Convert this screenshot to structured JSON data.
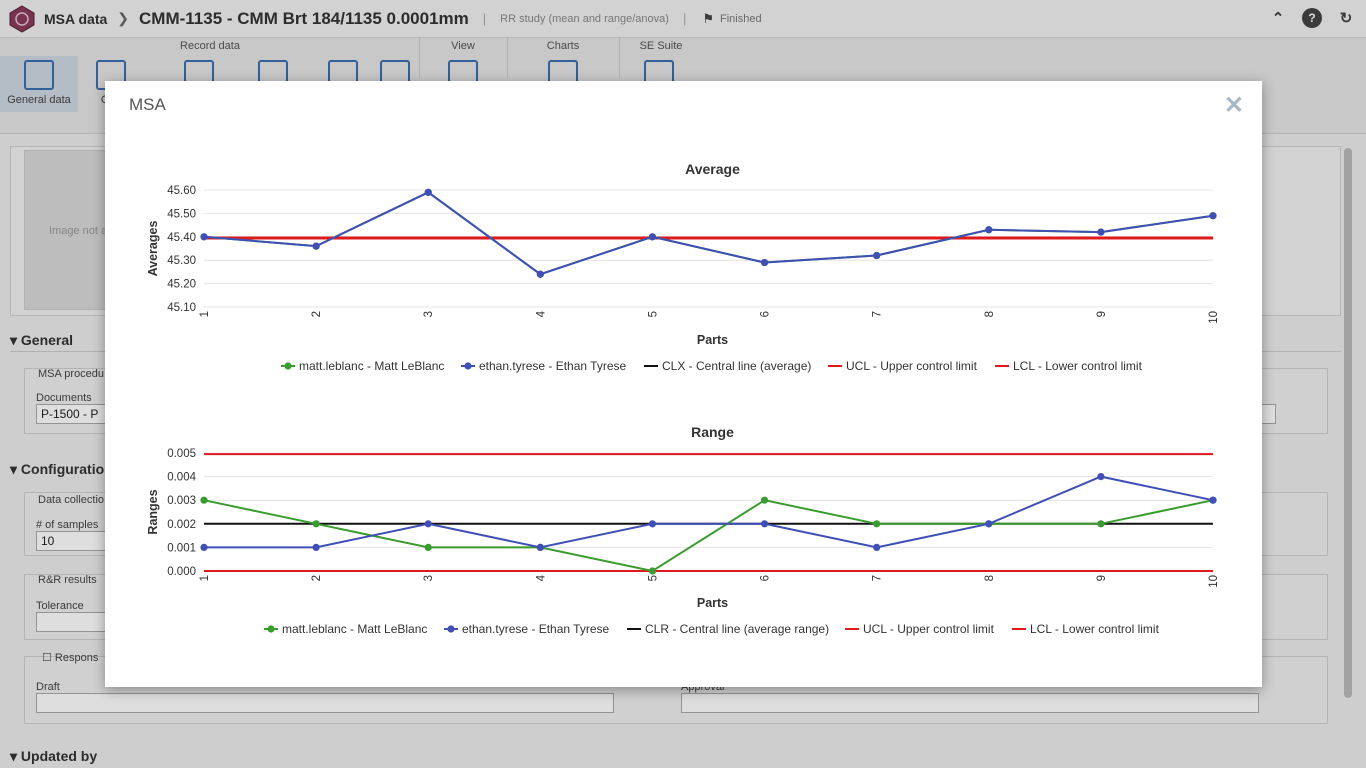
{
  "topbar": {
    "app_name": "MSA data",
    "record_title": "CMM-1135 - CMM Brt 184/1135 0.0001mm",
    "study_type": "RR study (mean and range/anova)",
    "status": "Finished"
  },
  "ribbon": {
    "groups": [
      "Record data",
      "View",
      "Charts",
      "SE Suite"
    ],
    "general_data_label": "General data",
    "charts_label_partial": "Cha"
  },
  "background": {
    "image_placeholder": "Image not a",
    "sections": {
      "general": "General",
      "configuration": "Configuratio",
      "updated_by": "Updated by"
    },
    "msa_procedure_label": "MSA procedu",
    "documents_label": "Documents",
    "documents_value": "P-1500 - P",
    "data_collection_label": "Data collectio",
    "samples_label": "# of samples",
    "samples_value": "10",
    "rr_results_label": "R&R results",
    "tolerance_label": "Tolerance",
    "responsible_label": "Respons",
    "draft_label": "Draft",
    "approval_label": "Approval"
  },
  "modal": {
    "title": "MSA",
    "close_icon": "close-icon"
  },
  "colors": {
    "green": "#3a9b2f",
    "blue": "#3f4fb5",
    "red": "#e0191d",
    "black": "#111111"
  },
  "chart_data": [
    {
      "type": "line",
      "title": "Average",
      "xlabel": "Parts",
      "ylabel": "Averages",
      "x": [
        "1",
        "2",
        "3",
        "4",
        "5",
        "6",
        "7",
        "8",
        "9",
        "10"
      ],
      "ylim": [
        45.1,
        45.6
      ],
      "yticks": [
        "45.10",
        "45.20",
        "45.30",
        "45.40",
        "45.50",
        "45.60"
      ],
      "series": [
        {
          "name": "matt.leblanc - Matt LeBlanc",
          "color": "#3a9b2f",
          "values": [
            45.4,
            45.36,
            45.59,
            45.24,
            45.4,
            45.29,
            45.32,
            45.43,
            45.42,
            45.49
          ]
        },
        {
          "name": "ethan.tyrese - Ethan Tyrese",
          "color": "#3f4fb5",
          "values": [
            45.4,
            45.36,
            45.59,
            45.24,
            45.4,
            45.29,
            45.32,
            45.43,
            45.42,
            45.49
          ]
        }
      ],
      "lines": [
        {
          "name": "CLX - Central line (average)",
          "color": "#111111",
          "value": 45.395
        },
        {
          "name": "UCL - Upper control limit",
          "color": "#e0191d",
          "value": 45.397
        },
        {
          "name": "LCL - Lower control limit",
          "color": "#e0191d",
          "value": 45.393
        }
      ],
      "grid": true,
      "legend": "bottom"
    },
    {
      "type": "line",
      "title": "Range",
      "xlabel": "Parts",
      "ylabel": "Ranges",
      "x": [
        "1",
        "2",
        "3",
        "4",
        "5",
        "6",
        "7",
        "8",
        "9",
        "10"
      ],
      "ylim": [
        0.0,
        0.005
      ],
      "yticks": [
        "0.000",
        "0.001",
        "0.002",
        "0.003",
        "0.004",
        "0.005"
      ],
      "series": [
        {
          "name": "matt.leblanc - Matt LeBlanc",
          "color": "#3a9b2f",
          "values": [
            0.003,
            0.002,
            0.001,
            0.001,
            0.0,
            0.003,
            0.002,
            0.002,
            0.002,
            0.003
          ]
        },
        {
          "name": "ethan.tyrese - Ethan Tyrese",
          "color": "#3f4fb5",
          "values": [
            0.001,
            0.001,
            0.002,
            0.001,
            0.002,
            0.002,
            0.001,
            0.002,
            0.004,
            0.003
          ]
        }
      ],
      "lines": [
        {
          "name": "CLR - Central line (average range)",
          "color": "#111111",
          "value": 0.002
        },
        {
          "name": "UCL - Upper control limit",
          "color": "#e0191d",
          "value": 0.00495
        },
        {
          "name": "LCL - Lower control limit",
          "color": "#e0191d",
          "value": 0.0
        }
      ],
      "grid": true,
      "legend": "bottom"
    }
  ]
}
